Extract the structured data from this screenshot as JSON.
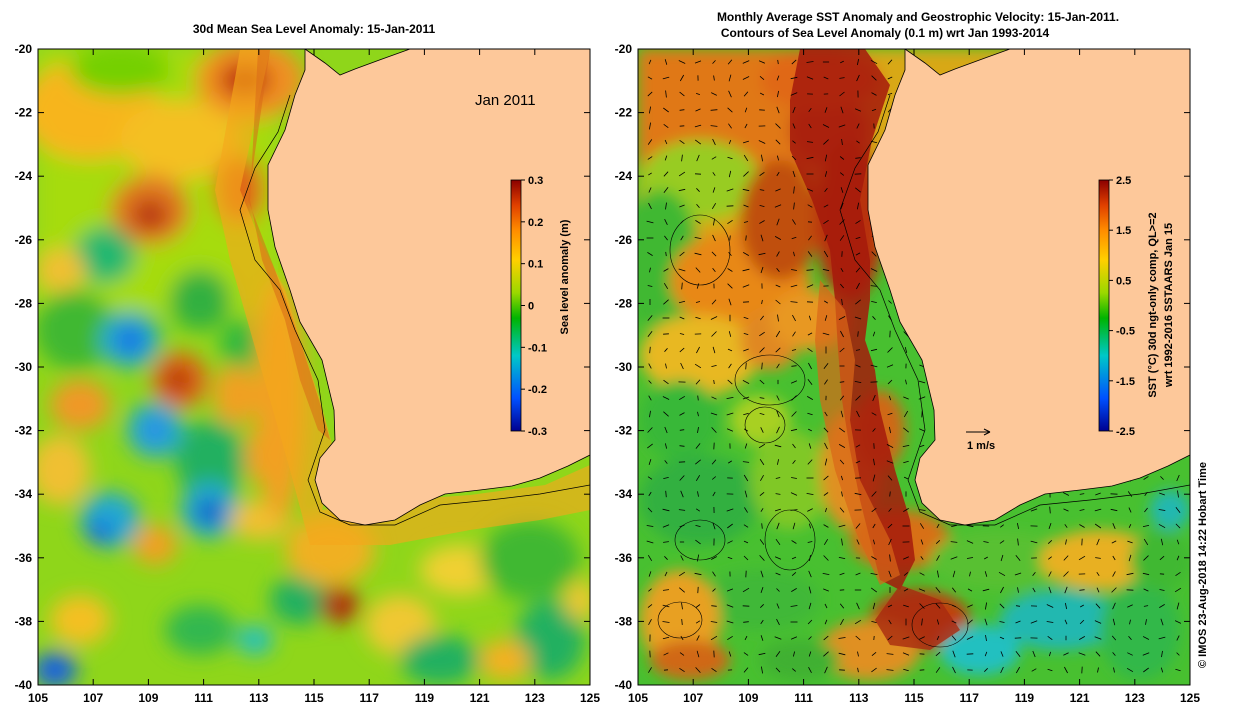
{
  "left_panel": {
    "title": "30d Mean Sea Level Anomaly: 15-Jan-2011",
    "date_label": "Jan 2011",
    "colorbar": {
      "label": "Sea level anomaly (m)",
      "ticks": [
        "0.3",
        "0.2",
        "0.1",
        "0",
        "-0.1",
        "-0.2",
        "-0.3"
      ]
    }
  },
  "right_panel": {
    "title_line1": "Monthly Average SST Anomaly  and Geostrophic Velocity: 15-Jan-2011.",
    "title_line2": "Contours of Sea Level Anomaly (0.1 m) wrt Jan 1993-2014",
    "scale_label": "1 m/s",
    "colorbar": {
      "label_line1": "SST (°C) 30d ngt-only comp, QL>=2",
      "label_line2": "wrt 1992-2016 SSTAARS Jan 15",
      "ticks": [
        "2.5",
        "1.5",
        "0.5",
        "-0.5",
        "-1.5",
        "-2.5"
      ]
    }
  },
  "axes": {
    "x_ticks": [
      "105",
      "107",
      "109",
      "111",
      "113",
      "115",
      "117",
      "119",
      "121",
      "123",
      "125"
    ],
    "y_ticks": [
      "-20",
      "-22",
      "-24",
      "-26",
      "-28",
      "-30",
      "-32",
      "-34",
      "-36",
      "-38",
      "-40"
    ]
  },
  "credit": "© IMOS 23-Aug-2018 14:22 Hobart Time",
  "colors": {
    "land": "#fdc89a",
    "sla_scale": [
      "#00008f",
      "#0050ff",
      "#00c8c8",
      "#00b400",
      "#9ad800",
      "#ffd000",
      "#ff8c00",
      "#e04000",
      "#8b0000"
    ],
    "sst_scale": [
      "#00008f",
      "#0050ff",
      "#00c8c8",
      "#00b400",
      "#9ad800",
      "#ffd000",
      "#ff8c00",
      "#e04000",
      "#8b0000"
    ]
  }
}
